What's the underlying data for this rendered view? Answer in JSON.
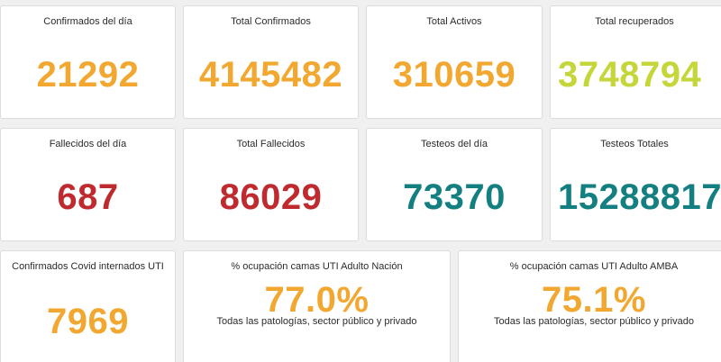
{
  "cards": [
    {
      "title": "Confirmados del día",
      "value": "21292",
      "color": "#f2a830"
    },
    {
      "title": "Total Confirmados",
      "value": "4145482",
      "color": "#f2a830"
    },
    {
      "title": "Total Activos",
      "value": "310659",
      "color": "#f2a830"
    },
    {
      "title": "Total recuperados",
      "value": "3748794",
      "color": "#c5d63a"
    },
    {
      "title": "Fallecidos del día",
      "value": "687",
      "color": "#bf2a2e"
    },
    {
      "title": "Total Fallecidos",
      "value": "86029",
      "color": "#bf2a2e"
    },
    {
      "title": "Testeos del día",
      "value": "73370",
      "color": "#137f80"
    },
    {
      "title": "Testeos Totales",
      "value": "15288817",
      "color": "#137f80"
    },
    {
      "title": "Confirmados Covid internados UTI",
      "value": "7969",
      "color": "#f2a830"
    },
    {
      "title": "% ocupación camas UTI Adulto Nación",
      "value": "77.0%",
      "subtitle": "Todas las patologías, sector público y privado",
      "color": "#f2a830"
    },
    {
      "title": "% ocupación camas UTI Adulto AMBA",
      "value": "75.1%",
      "subtitle": "Todas las patologías, sector público y privado",
      "color": "#f2a830"
    }
  ]
}
